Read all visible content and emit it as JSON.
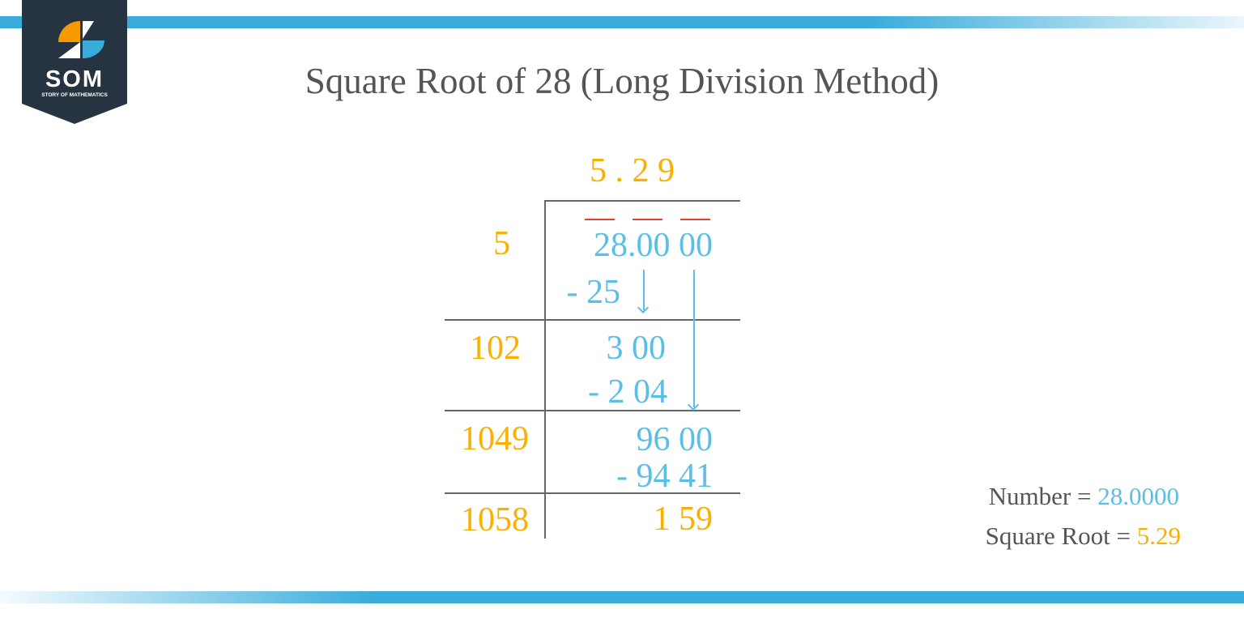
{
  "logo": {
    "text": "SOM",
    "subtitle": "STORY OF MATHEMATICS"
  },
  "title": "Square Root of 28 (Long Division Method)",
  "quotient": "5 . 2 9",
  "divisors": [
    "5",
    "102",
    "1049",
    "1058"
  ],
  "steps": {
    "dividend": "28.00 00",
    "sub1": "- 25",
    "rem1": "3 00",
    "sub2": "- 2 04",
    "rem2": "96 00",
    "sub3": "- 94 41",
    "rem3": "1 59"
  },
  "summary": {
    "number_label": "Number = ",
    "number_value": "28.0000",
    "root_label": "Square Root = ",
    "root_value": "5.29"
  },
  "colors": {
    "accent_blue": "#5BBEE5",
    "accent_orange": "#F9B000",
    "bar_blue": "#3AACDB",
    "pair_mark_red": "#E8402E",
    "logo_bg": "#263340"
  }
}
